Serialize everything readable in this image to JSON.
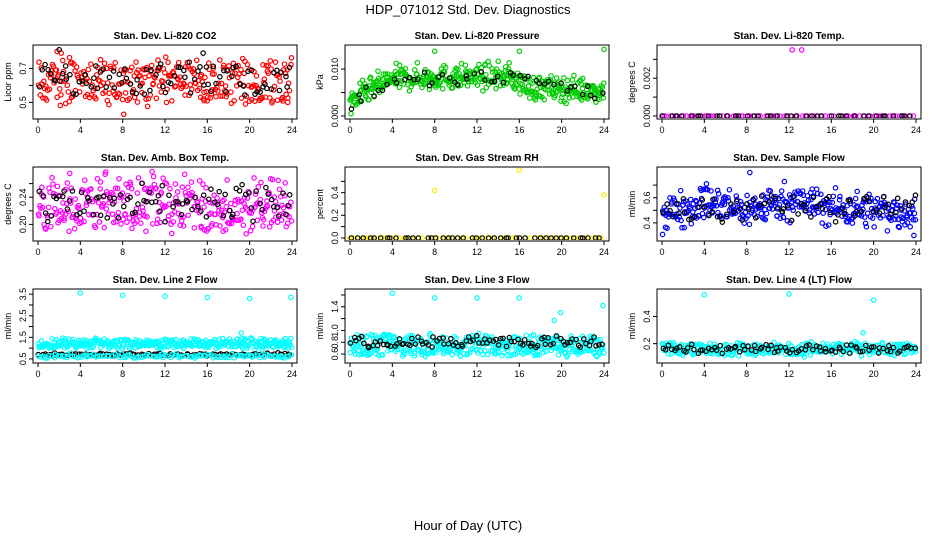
{
  "page": {
    "title": "HDP_071012  Std. Dev. Diagnostics",
    "x_label": "Hour of Day (UTC)"
  },
  "chart_data": [
    {
      "type": "scatter",
      "title": "Stan. Dev. Li-820 CO2",
      "ylabel": "Licor ppm",
      "xlim": [
        0,
        24
      ],
      "ylim": [
        0.42,
        0.82
      ],
      "xticks": [
        0,
        4,
        8,
        12,
        16,
        20,
        24
      ],
      "yticks": [
        0.5,
        0.6,
        0.7
      ],
      "ytick_labels": [
        "0.5",
        "",
        "0.7"
      ],
      "series": [
        {
          "color": "#ff0000",
          "band": [
            0.5,
            0.75
          ],
          "noise": 0.05,
          "n": 300,
          "x": [
            1.8,
            2.2,
            8.1,
            15.7,
            23.6
          ],
          "y": [
            0.8,
            0.79,
            0.43,
            0.51,
            0.5
          ]
        },
        {
          "color": "#000000",
          "band": [
            0.55,
            0.72
          ],
          "noise": 0.04,
          "n": 90,
          "x": [
            2.0,
            15.6
          ],
          "y": [
            0.81,
            0.79
          ]
        }
      ]
    },
    {
      "type": "scatter",
      "title": "Stan. Dev. Li-820 Pressure",
      "ylabel": "kPa",
      "xlim": [
        0,
        24
      ],
      "ylim": [
        0.0,
        0.0145
      ],
      "xticks": [
        0,
        4,
        8,
        12,
        16,
        20,
        24
      ],
      "yticks": [
        0.0,
        0.005,
        0.01
      ],
      "ytick_labels": [
        "0.000",
        "",
        "0.010"
      ],
      "series": [
        {
          "color": "#00cc00",
          "profile": [
            [
              0,
              0.003
            ],
            [
              1.5,
              0.005
            ],
            [
              4,
              0.008
            ],
            [
              15,
              0.0085
            ],
            [
              17,
              0.006
            ],
            [
              24,
              0.0055
            ]
          ],
          "noise": 0.0013,
          "n": 420,
          "x": [
            0.1,
            8.0,
            16.0,
            24.0
          ],
          "y": [
            0.0005,
            0.0138,
            0.0138,
            0.0142
          ]
        },
        {
          "color": "#000000",
          "profile": [
            [
              0,
              0.003
            ],
            [
              4,
              0.0075
            ],
            [
              16,
              0.008
            ],
            [
              24,
              0.005
            ]
          ],
          "noise": 0.001,
          "n": 50,
          "x": [],
          "y": []
        }
      ]
    },
    {
      "type": "scatter",
      "title": "Stan. Dev. Li-820 Temp.",
      "ylabel": "degrees C",
      "xlim": [
        0,
        24
      ],
      "ylim": [
        0.0,
        0.0036
      ],
      "xticks": [
        0,
        4,
        8,
        12,
        16,
        20,
        24
      ],
      "yticks": [
        0.0,
        0.001,
        0.002,
        0.003
      ],
      "ytick_labels": [
        "0.000",
        "",
        "0.002",
        ""
      ],
      "series": [
        {
          "color": "#ff00ff",
          "flat": 0.0,
          "n": 70,
          "x": [
            0.0,
            12.3,
            13.2
          ],
          "y": [
            0.0,
            0.0035,
            0.0035
          ]
        },
        {
          "color": "#000000",
          "flat": 0.0,
          "n": 40,
          "x": [],
          "y": []
        }
      ]
    },
    {
      "type": "scatter",
      "title": "Stan. Dev. Amb. Box Temp.",
      "ylabel": "degrees C",
      "xlim": [
        0,
        24
      ],
      "ylim": [
        0.18,
        0.28
      ],
      "xticks": [
        0,
        4,
        8,
        12,
        16,
        20,
        24
      ],
      "yticks": [
        0.2,
        0.22,
        0.24,
        0.26
      ],
      "ytick_labels": [
        "0.20",
        "",
        "0.24",
        ""
      ],
      "series": [
        {
          "color": "#ff00ff",
          "band": [
            0.195,
            0.265
          ],
          "noise": 0.02,
          "n": 330,
          "x": [
            3.0,
            6.4,
            10.2,
            17.5
          ],
          "y": [
            0.275,
            0.277,
            0.19,
            0.19
          ]
        },
        {
          "color": "#000000",
          "band": [
            0.205,
            0.255
          ],
          "noise": 0.015,
          "n": 90,
          "x": [],
          "y": []
        }
      ]
    },
    {
      "type": "scatter",
      "title": "Stan. Dev. Gas Stream RH",
      "ylabel": "percent",
      "xlim": [
        0,
        24
      ],
      "ylim": [
        0.0,
        0.6
      ],
      "xticks": [
        0,
        4,
        8,
        12,
        16,
        20,
        24
      ],
      "yticks": [
        0.0,
        0.1,
        0.2,
        0.3,
        0.4,
        0.5
      ],
      "ytick_labels": [
        "0.0",
        "",
        "0.2",
        "",
        "0.4",
        ""
      ],
      "series": [
        {
          "color": "#ffee00",
          "flat": 0.0,
          "n": 60,
          "x": [
            0.0,
            8.0,
            16.0,
            24.0
          ],
          "y": [
            0.0,
            0.42,
            0.6,
            0.38
          ]
        },
        {
          "color": "#000000",
          "flat": 0.0,
          "n": 45,
          "x": [],
          "y": []
        }
      ]
    },
    {
      "type": "scatter",
      "title": "Stan. Dev. Sample Flow",
      "ylabel": "ml/min",
      "xlim": [
        0,
        24
      ],
      "ylim": [
        0.28,
        0.82
      ],
      "xticks": [
        0,
        4,
        8,
        12,
        16,
        20,
        24
      ],
      "yticks": [
        0.4,
        0.5,
        0.6,
        0.7
      ],
      "ytick_labels": [
        "0.4",
        "",
        "0.6",
        ""
      ],
      "series": [
        {
          "color": "#0000ff",
          "profile": [
            [
              0,
              0.48
            ],
            [
              4,
              0.56
            ],
            [
              8,
              0.5
            ],
            [
              12,
              0.58
            ],
            [
              16,
              0.52
            ],
            [
              20,
              0.5
            ],
            [
              24,
              0.48
            ]
          ],
          "noise": 0.07,
          "n": 360,
          "x": [
            4.2,
            8.3,
            23.8
          ],
          "y": [
            0.71,
            0.8,
            0.3
          ]
        },
        {
          "color": "#000000",
          "band": [
            0.42,
            0.62
          ],
          "noise": 0.04,
          "n": 80,
          "x": [],
          "y": []
        }
      ]
    },
    {
      "type": "scatter",
      "title": "Stan. Dev. Line 2 Flow",
      "ylabel": "ml/min",
      "xlim": [
        0,
        24
      ],
      "ylim": [
        0.45,
        3.6
      ],
      "xticks": [
        0,
        4,
        8,
        12,
        16,
        20,
        24
      ],
      "yticks": [
        0.5,
        1.0,
        1.5,
        2.0,
        2.5,
        3.0,
        3.5
      ],
      "ytick_labels": [
        "0.5",
        "",
        "1.5",
        "",
        "2.5",
        "",
        "3.5"
      ],
      "series": [
        {
          "color": "#00ffff",
          "band": [
            1.0,
            1.42
          ],
          "noise": 0.12,
          "n": 330,
          "x": [
            4.0,
            8.0,
            12.0,
            16.0,
            20.0,
            23.9,
            19.2
          ],
          "y": [
            3.55,
            3.45,
            3.4,
            3.35,
            3.3,
            3.35,
            1.7
          ]
        },
        {
          "color": "#000000",
          "flat": 0.7,
          "noise": 0.03,
          "n": 95,
          "x": [],
          "y": []
        },
        {
          "color": "#00ffff",
          "flat": 0.63,
          "noise": 0.05,
          "n": 120,
          "x": [],
          "y": []
        }
      ]
    },
    {
      "type": "scatter",
      "title": "Stan. Dev. Line 3 Flow",
      "ylabel": "ml/min",
      "xlim": [
        0,
        24
      ],
      "ylim": [
        0.5,
        1.65
      ],
      "xticks": [
        0,
        4,
        8,
        12,
        16,
        20,
        24
      ],
      "yticks": [
        0.6,
        0.8,
        1.0,
        1.2,
        1.4,
        1.6
      ],
      "ytick_labels": [
        "0.6",
        "0.8",
        "1.0",
        "",
        "1.4",
        ""
      ],
      "series": [
        {
          "color": "#00ffff",
          "band": [
            0.58,
            0.92
          ],
          "noise": 0.08,
          "n": 400,
          "x": [
            4.0,
            8.0,
            12.0,
            16.0,
            19.3,
            19.9,
            23.9
          ],
          "y": [
            1.63,
            1.55,
            1.55,
            1.55,
            1.17,
            1.3,
            1.42
          ]
        },
        {
          "color": "#000000",
          "band": [
            0.72,
            0.9
          ],
          "noise": 0.04,
          "n": 95,
          "x": [],
          "y": []
        }
      ]
    },
    {
      "type": "scatter",
      "title": "Stan. Dev. Line 4 (LT) Flow",
      "ylabel": "ml/min",
      "xlim": [
        0,
        24
      ],
      "ylim": [
        0.08,
        0.58
      ],
      "xticks": [
        0,
        4,
        8,
        12,
        16,
        20,
        24
      ],
      "yticks": [
        0.2,
        0.4
      ],
      "ytick_labels": [
        "0.2",
        "0.4"
      ],
      "series": [
        {
          "color": "#00ffff",
          "band": [
            0.12,
            0.2
          ],
          "noise": 0.03,
          "n": 320,
          "x": [
            4.0,
            12.0,
            20.0,
            19.0
          ],
          "y": [
            0.56,
            0.565,
            0.52,
            0.28
          ]
        },
        {
          "color": "#000000",
          "band": [
            0.13,
            0.19
          ],
          "noise": 0.02,
          "n": 90,
          "x": [],
          "y": []
        }
      ]
    }
  ]
}
